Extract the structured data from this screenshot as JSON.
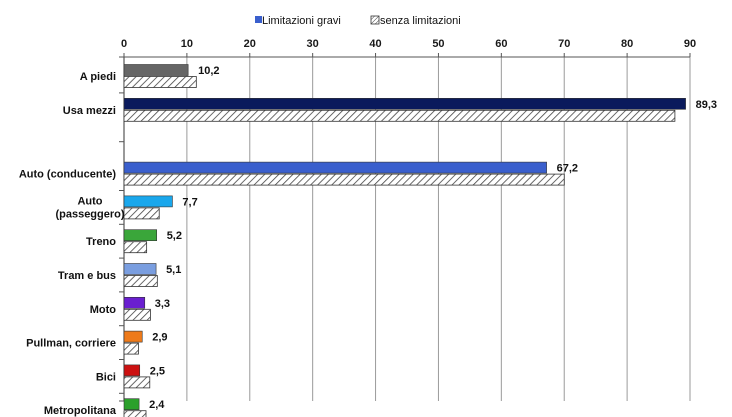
{
  "chart_data": {
    "type": "bar",
    "orientation": "horizontal",
    "axis_position": "top",
    "xlim": [
      0,
      90
    ],
    "ticks": [
      0,
      10,
      20,
      30,
      40,
      50,
      60,
      70,
      80,
      90
    ],
    "grid": true,
    "legend_position": "top",
    "categories": [
      "A piedi",
      "Usa mezzi",
      "Auto (conducente)",
      "Auto (passeggero)",
      "Treno",
      "Tram e bus",
      "Moto",
      "Pullman, corriere",
      "Bici",
      "Metropolitana"
    ],
    "category_lines": [
      [
        "A piedi"
      ],
      [
        "Usa mezzi"
      ],
      [
        "Auto (conducente)"
      ],
      [
        "Auto",
        "(passeggero)"
      ],
      [
        "Treno"
      ],
      [
        "Tram e bus"
      ],
      [
        "Moto"
      ],
      [
        "Pullman, corriere"
      ],
      [
        "Bici"
      ],
      [
        "Metropolitana"
      ]
    ],
    "gap_after_index": 1,
    "series": [
      {
        "name": "Limitazioni gravi",
        "color": "#3a5fcd",
        "point_colors": [
          "#666666",
          "#0a1a5c",
          "#3a5fcd",
          "#1aa7ec",
          "#3aa63a",
          "#7a9ee0",
          "#6a1fd0",
          "#ee7a1a",
          "#cc1111",
          "#2aa02a"
        ],
        "values": [
          10.2,
          89.3,
          67.2,
          7.7,
          5.2,
          5.1,
          3.3,
          2.9,
          2.5,
          2.4
        ],
        "labels": [
          "10,2",
          "89,3",
          "67,2",
          "7,7",
          "5,2",
          "5,1",
          "3,3",
          "2,9",
          "2,5",
          "2,4"
        ]
      },
      {
        "name": "senza limitazioni",
        "pattern": "hatched",
        "values": [
          11.5,
          87.6,
          70.0,
          5.6,
          3.6,
          5.3,
          4.2,
          2.3,
          4.1,
          3.5
        ]
      }
    ]
  }
}
